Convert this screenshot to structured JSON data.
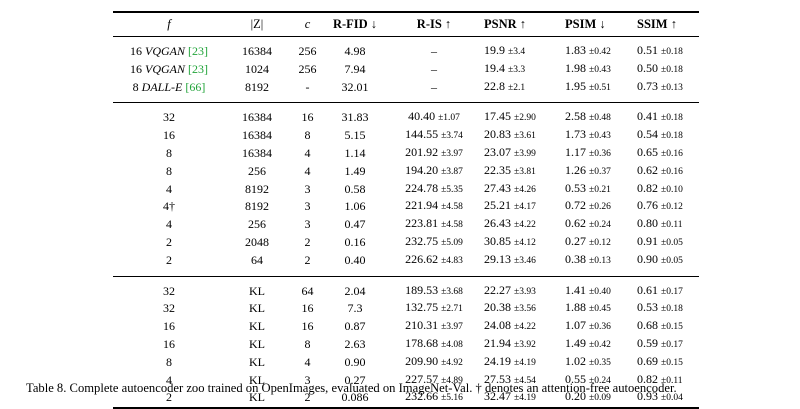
{
  "table": {
    "headers": [
      "f",
      "|Z|",
      "c",
      "R-FID ↓",
      "R-IS ↑",
      "PSNR ↑",
      "PSIM ↓",
      "SSIM ↑"
    ],
    "groups": [
      {
        "rows": [
          {
            "f": "16",
            "model": "VQGAN",
            "cite": "[23]",
            "z": "16384",
            "c": "256",
            "rfid": "4.98",
            "ris": "–",
            "psnr": "19.9",
            "psnr_sd": "±3.4",
            "psim": "1.83",
            "psim_sd": "±0.42",
            "ssim": "0.51",
            "ssim_sd": "±0.18"
          },
          {
            "f": "16",
            "model": "VQGAN",
            "cite": "[23]",
            "z": "1024",
            "c": "256",
            "rfid": "7.94",
            "ris": "–",
            "psnr": "19.4",
            "psnr_sd": "±3.3",
            "psim": "1.98",
            "psim_sd": "±0.43",
            "ssim": "0.50",
            "ssim_sd": "±0.18"
          },
          {
            "f": "8",
            "model": "DALL-E",
            "cite": "[66]",
            "z": "8192",
            "c": "-",
            "rfid": "32.01",
            "ris": "–",
            "psnr": "22.8",
            "psnr_sd": "±2.1",
            "psim": "1.95",
            "psim_sd": "±0.51",
            "ssim": "0.73",
            "ssim_sd": "±0.13"
          }
        ]
      },
      {
        "rows": [
          {
            "f": "32",
            "z": "16384",
            "c": "16",
            "rfid": "31.83",
            "ris": "40.40",
            "ris_sd": "±1.07",
            "psnr": "17.45",
            "psnr_sd": "±2.90",
            "psim": "2.58",
            "psim_sd": "±0.48",
            "ssim": "0.41",
            "ssim_sd": "±0.18"
          },
          {
            "f": "16",
            "z": "16384",
            "c": "8",
            "rfid": "5.15",
            "ris": "144.55",
            "ris_sd": "±3.74",
            "psnr": "20.83",
            "psnr_sd": "±3.61",
            "psim": "1.73",
            "psim_sd": "±0.43",
            "ssim": "0.54",
            "ssim_sd": "±0.18"
          },
          {
            "f": "8",
            "z": "16384",
            "c": "4",
            "rfid": "1.14",
            "ris": "201.92",
            "ris_sd": "±3.97",
            "psnr": "23.07",
            "psnr_sd": "±3.99",
            "psim": "1.17",
            "psim_sd": "±0.36",
            "ssim": "0.65",
            "ssim_sd": "±0.16"
          },
          {
            "f": "8",
            "z": "256",
            "c": "4",
            "rfid": "1.49",
            "ris": "194.20",
            "ris_sd": "±3.87",
            "psnr": "22.35",
            "psnr_sd": "±3.81",
            "psim": "1.26",
            "psim_sd": "±0.37",
            "ssim": "0.62",
            "ssim_sd": "±0.16"
          },
          {
            "f": "4",
            "z": "8192",
            "c": "3",
            "rfid": "0.58",
            "ris": "224.78",
            "ris_sd": "±5.35",
            "psnr": "27.43",
            "psnr_sd": "±4.26",
            "psim": "0.53",
            "psim_sd": "±0.21",
            "ssim": "0.82",
            "ssim_sd": "±0.10"
          },
          {
            "f": "4†",
            "z": "8192",
            "c": "3",
            "rfid": "1.06",
            "ris": "221.94",
            "ris_sd": "±4.58",
            "psnr": "25.21",
            "psnr_sd": "±4.17",
            "psim": "0.72",
            "psim_sd": "±0.26",
            "ssim": "0.76",
            "ssim_sd": "±0.12"
          },
          {
            "f": "4",
            "z": "256",
            "c": "3",
            "rfid": "0.47",
            "ris": "223.81",
            "ris_sd": "±4.58",
            "psnr": "26.43",
            "psnr_sd": "±4.22",
            "psim": "0.62",
            "psim_sd": "±0.24",
            "ssim": "0.80",
            "ssim_sd": "±0.11"
          },
          {
            "f": "2",
            "z": "2048",
            "c": "2",
            "rfid": "0.16",
            "ris": "232.75",
            "ris_sd": "±5.09",
            "psnr": "30.85",
            "psnr_sd": "±4.12",
            "psim": "0.27",
            "psim_sd": "±0.12",
            "ssim": "0.91",
            "ssim_sd": "±0.05"
          },
          {
            "f": "2",
            "z": "64",
            "c": "2",
            "rfid": "0.40",
            "ris": "226.62",
            "ris_sd": "±4.83",
            "psnr": "29.13",
            "psnr_sd": "±3.46",
            "psim": "0.38",
            "psim_sd": "±0.13",
            "ssim": "0.90",
            "ssim_sd": "±0.05"
          }
        ]
      },
      {
        "rows": [
          {
            "f": "32",
            "z": "KL",
            "c": "64",
            "rfid": "2.04",
            "ris": "189.53",
            "ris_sd": "±3.68",
            "psnr": "22.27",
            "psnr_sd": "±3.93",
            "psim": "1.41",
            "psim_sd": "±0.40",
            "ssim": "0.61",
            "ssim_sd": "±0.17"
          },
          {
            "f": "32",
            "z": "KL",
            "c": "16",
            "rfid": "7.3",
            "ris": "132.75",
            "ris_sd": "±2.71",
            "psnr": "20.38",
            "psnr_sd": "±3.56",
            "psim": "1.88",
            "psim_sd": "±0.45",
            "ssim": "0.53",
            "ssim_sd": "±0.18"
          },
          {
            "f": "16",
            "z": "KL",
            "c": "16",
            "rfid": "0.87",
            "ris": "210.31",
            "ris_sd": "±3.97",
            "psnr": "24.08",
            "psnr_sd": "±4.22",
            "psim": "1.07",
            "psim_sd": "±0.36",
            "ssim": "0.68",
            "ssim_sd": "±0.15"
          },
          {
            "f": "16",
            "z": "KL",
            "c": "8",
            "rfid": "2.63",
            "ris": "178.68",
            "ris_sd": "±4.08",
            "psnr": "21.94",
            "psnr_sd": "±3.92",
            "psim": "1.49",
            "psim_sd": "±0.42",
            "ssim": "0.59",
            "ssim_sd": "±0.17"
          },
          {
            "f": "8",
            "z": "KL",
            "c": "4",
            "rfid": "0.90",
            "ris": "209.90",
            "ris_sd": "±4.92",
            "psnr": "24.19",
            "psnr_sd": "±4.19",
            "psim": "1.02",
            "psim_sd": "±0.35",
            "ssim": "0.69",
            "ssim_sd": "±0.15"
          },
          {
            "f": "4",
            "z": "KL",
            "c": "3",
            "rfid": "0.27",
            "ris": "227.57",
            "ris_sd": "±4.89",
            "psnr": "27.53",
            "psnr_sd": "±4.54",
            "psim": "0.55",
            "psim_sd": "±0.24",
            "ssim": "0.82",
            "ssim_sd": "±0.11"
          },
          {
            "f": "2",
            "z": "KL",
            "c": "2",
            "rfid": "0.086",
            "ris": "232.66",
            "ris_sd": "±5.16",
            "psnr": "32.47",
            "psnr_sd": "±4.19",
            "psim": "0.20",
            "psim_sd": "±0.09",
            "ssim": "0.93",
            "ssim_sd": "±0.04"
          }
        ]
      }
    ]
  },
  "caption": {
    "label": "Table 8.",
    "text": "Complete autoencoder zoo trained on OpenImages, evaluated on ImageNet-Val. † denotes an attention-free autoencoder."
  }
}
